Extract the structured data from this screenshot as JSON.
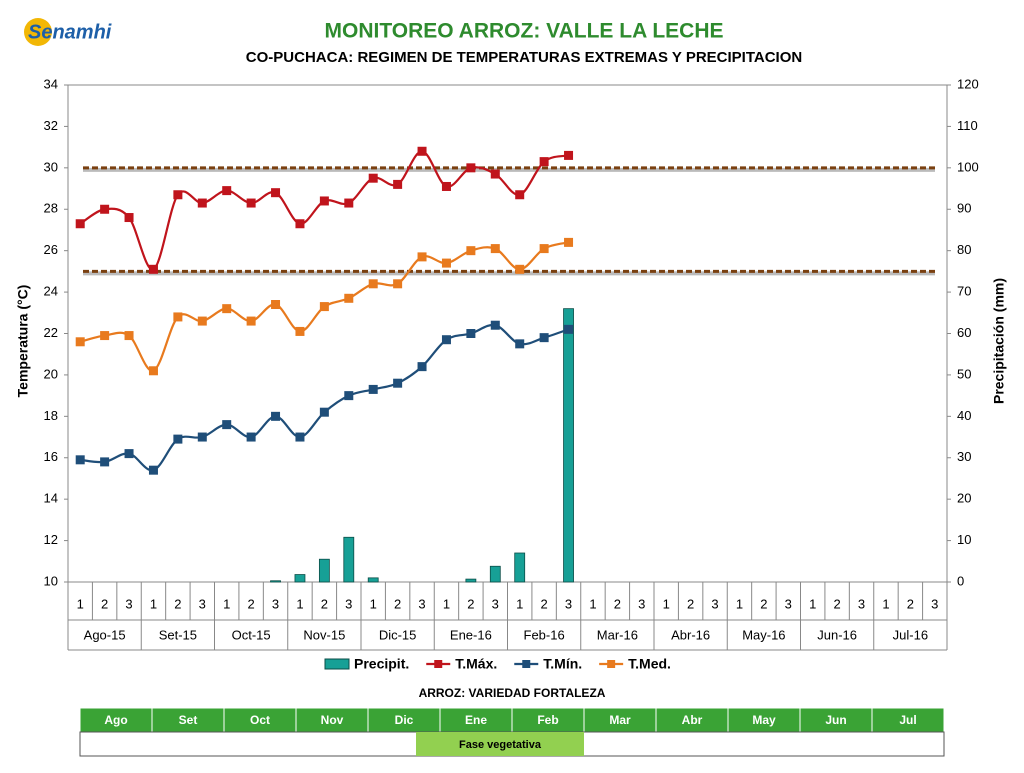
{
  "logo": {
    "name": "Senamhi"
  },
  "chart_data": {
    "type": "line",
    "title": "MONITOREO ARROZ: VALLE LA LECHE",
    "subtitle": "CO-PUCHACA: REGIMEN DE TEMPERATURAS EXTREMAS Y PRECIPITACION",
    "ylabel": "Temperatura (°C)",
    "y2label": "Precipitación (mm)",
    "categories": [
      "1",
      "2",
      "3",
      "1",
      "2",
      "3",
      "1",
      "2",
      "3",
      "1",
      "2",
      "3",
      "1",
      "2",
      "3",
      "1",
      "2",
      "3",
      "1",
      "2",
      "3",
      "1",
      "2",
      "3",
      "1",
      "2",
      "3",
      "1",
      "2",
      "3",
      "1",
      "2",
      "3",
      "1",
      "2",
      "3"
    ],
    "months": [
      "Ago-15",
      "Set-15",
      "Oct-15",
      "Nov-15",
      "Dic-15",
      "Ene-16",
      "Feb-16",
      "Mar-16",
      "Abr-16",
      "May-16",
      "Jun-16",
      "Jul-16"
    ],
    "ylim": [
      10,
      34
    ],
    "yticks": [
      10,
      12,
      14,
      16,
      18,
      20,
      22,
      24,
      26,
      28,
      30,
      32,
      34
    ],
    "y2lim": [
      0,
      120
    ],
    "y2ticks": [
      0,
      10,
      20,
      30,
      40,
      50,
      60,
      70,
      80,
      90,
      100,
      110,
      120
    ],
    "reference_lines": [
      30,
      25
    ],
    "series": [
      {
        "name": "Precipit.",
        "type": "bar",
        "axis": "y2",
        "color": "#17a096",
        "values": [
          0,
          0,
          0,
          0,
          0,
          0,
          0,
          0,
          0.3,
          1.8,
          5.5,
          10.8,
          1,
          0,
          0,
          0,
          0.7,
          3.8,
          7,
          0,
          66,
          null,
          null,
          null,
          null,
          null,
          null,
          null,
          null,
          null,
          null,
          null,
          null,
          null,
          null,
          null
        ]
      },
      {
        "name": "T.Máx.",
        "type": "line",
        "color": "#c0141c",
        "values": [
          27.3,
          28.0,
          27.6,
          25.1,
          28.7,
          28.3,
          28.9,
          28.3,
          28.8,
          27.3,
          28.4,
          28.3,
          29.5,
          29.2,
          30.8,
          29.1,
          30.0,
          29.7,
          28.7,
          30.3,
          30.6,
          null,
          null,
          null,
          null,
          null,
          null,
          null,
          null,
          null,
          null,
          null,
          null,
          null,
          null,
          null
        ]
      },
      {
        "name": "T.Mín.",
        "type": "line",
        "color": "#1f4e79",
        "values": [
          15.9,
          15.8,
          16.2,
          15.4,
          16.9,
          17.0,
          17.6,
          17.0,
          18.0,
          17.0,
          18.2,
          19.0,
          19.3,
          19.6,
          20.4,
          21.7,
          22.0,
          22.4,
          21.5,
          21.8,
          22.2,
          null,
          null,
          null,
          null,
          null,
          null,
          null,
          null,
          null,
          null,
          null,
          null,
          null,
          null,
          null
        ]
      },
      {
        "name": "T.Med.",
        "type": "line",
        "color": "#e87a1e",
        "values": [
          21.6,
          21.9,
          21.9,
          20.2,
          22.8,
          22.6,
          23.2,
          22.6,
          23.4,
          22.1,
          23.3,
          23.7,
          24.4,
          24.4,
          25.7,
          25.4,
          26.0,
          26.1,
          25.1,
          26.1,
          26.4,
          null,
          null,
          null,
          null,
          null,
          null,
          null,
          null,
          null,
          null,
          null,
          null,
          null,
          null,
          null
        ]
      }
    ]
  },
  "crop_table": {
    "title": "ARROZ: VARIEDAD FORTALEZA",
    "months": [
      "Ago",
      "Set",
      "Oct",
      "Nov",
      "Dic",
      "Ene",
      "Feb",
      "Mar",
      "Abr",
      "May",
      "Jun",
      "Jul"
    ],
    "phase": "Fase vegetativa"
  }
}
